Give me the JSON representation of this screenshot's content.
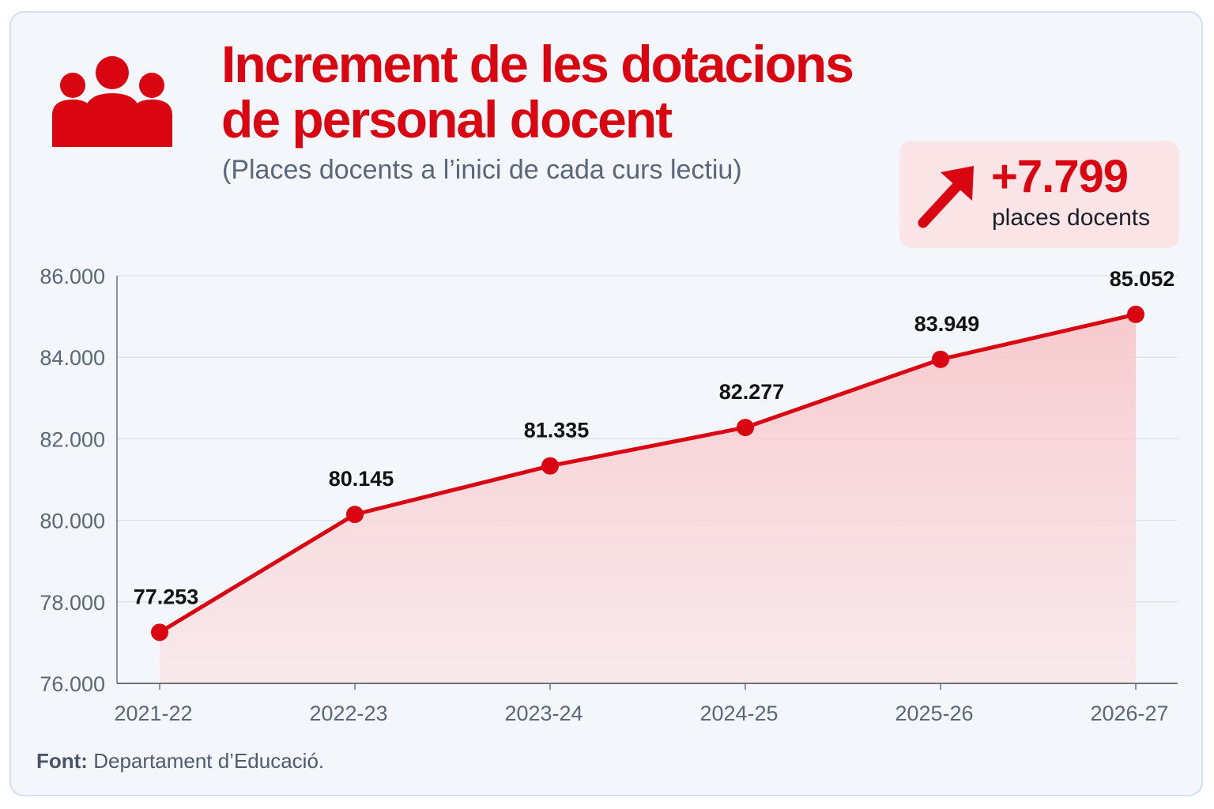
{
  "header": {
    "title_line1": "Increment de les dotacions",
    "title_line2": "de personal docent",
    "subtitle": "(Places docents a l’inici de cada curs lectiu)",
    "icon": "people-group-icon"
  },
  "badge": {
    "icon": "arrow-up-right-icon",
    "value": "+7.799",
    "label": "places docents"
  },
  "footer": {
    "source_label": "Font:",
    "source_text": "Departament d’Educació."
  },
  "colors": {
    "accent": "#d90612",
    "area_fill": "#f7c9cc",
    "grid": "#dde3ea",
    "axis": "#6b7380",
    "tick_text": "#5b6678",
    "label_text": "#111111"
  },
  "chart_data": {
    "type": "line",
    "title": "Increment de les dotacions de personal docent",
    "subtitle": "(Places docents a l’inici de cada curs lectiu)",
    "categories": [
      "2021-22",
      "2022-23",
      "2023-24",
      "2024-25",
      "2025-26",
      "2026-27"
    ],
    "values": [
      77253,
      80145,
      81335,
      82277,
      83949,
      85052
    ],
    "data_labels": [
      "77.253",
      "80.145",
      "81.335",
      "82.277",
      "83.949",
      "85.052"
    ],
    "ylim": [
      76000,
      86000
    ],
    "yticks": [
      76000,
      78000,
      80000,
      82000,
      84000,
      86000
    ],
    "ytick_labels": [
      "76.000",
      "78.000",
      "80.000",
      "82.000",
      "84.000",
      "86.000"
    ],
    "xlabel": "",
    "ylabel": "",
    "grid": true,
    "area_fill": true,
    "legend": "none"
  }
}
